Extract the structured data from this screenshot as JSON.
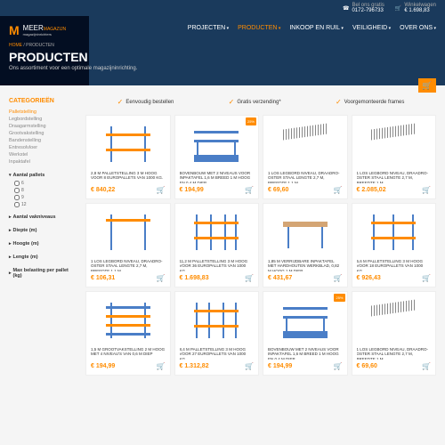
{
  "topbar": {
    "phone_label": "Bel ons gratis",
    "phone": "0172-796733",
    "cart_label": "Winkelwagen",
    "cart_total": "€ 1.698,83"
  },
  "logo": {
    "brand": "MEER",
    "sub": "MAGAZIJN",
    "tagline": "magazijninrichters"
  },
  "nav": [
    {
      "label": "PROJECTEN",
      "active": false
    },
    {
      "label": "PRODUCTEN",
      "active": true
    },
    {
      "label": "INKOOP EN RUIL",
      "active": false
    },
    {
      "label": "VEILIGHEID",
      "active": false
    },
    {
      "label": "OVER ONS",
      "active": false
    }
  ],
  "breadcrumb": {
    "home": "HOME",
    "current": "PRODUCTEN"
  },
  "page": {
    "title": "PRODUCTEN",
    "subtitle": "Ons assortiment voor een optimale magazijninrichting."
  },
  "sidebar": {
    "title": "CATEGORIEËN",
    "categories": [
      {
        "label": "Palletstelling",
        "active": true
      },
      {
        "label": "Legbordstelling",
        "active": false
      },
      {
        "label": "Draagarmstelling",
        "active": false
      },
      {
        "label": "Grootvakstelling",
        "active": false
      },
      {
        "label": "Bandenstelling",
        "active": false
      },
      {
        "label": "Entresolvloer",
        "active": false
      },
      {
        "label": "Werkstel",
        "active": false
      },
      {
        "label": "Inpaktafel",
        "active": false
      }
    ],
    "filters": [
      {
        "label": "Aantal pallets",
        "open": true,
        "options": [
          "6",
          "8",
          "9",
          "12"
        ]
      },
      {
        "label": "Aantal vakniveaus",
        "open": false
      },
      {
        "label": "Diepte (m)",
        "open": false
      },
      {
        "label": "Hoogte (m)",
        "open": false
      },
      {
        "label": "Lengte (m)",
        "open": false
      },
      {
        "label": "Max belasting per pallet (kg)",
        "open": false
      }
    ]
  },
  "benefits": [
    "Eenvoudig bestellen",
    "Gratis verzending*",
    "Voorgemonteerde frames"
  ],
  "products": [
    {
      "title": "2,8 M PALLETSTELLING 3 M HOOG VOOR 8 EUROPALLETS VAN 1000 KG.",
      "price": "€ 840,22"
    },
    {
      "title": "BOVENBOUW MET 2 NIVEAUS VOOR INPAKTAFEL 1,6 M BREED 1 M HOOG EN 0,4 M DIEP",
      "price": "€ 194,99",
      "badge": "25%"
    },
    {
      "title": "1 LOS LEGBORD NIVEAU, DRAADRO-OSTER STAAL LENGTE 2,7 M, BREEDTE 1,1 M",
      "price": "€ 69,60"
    },
    {
      "title": "1 LOS LEGBORD NIVEAU, DRAADRO-OSTER STAAL LENGTE 2,7 M, BREEDTE 1 M",
      "price": "€ 2.085,02"
    },
    {
      "title": "1 LOS LEGBORD NIVEAU, DRAADRO-OSTER STAAL LENGTE 2,7 M, BREEDTE 1,1 M",
      "price": "€ 106,31"
    },
    {
      "title": "11,2 M PALLETSTELLING 3 M HOOG VOOR 36 EUROPALLETS VAN 1000 KG.",
      "price": "€ 1.698,83"
    },
    {
      "title": "1,85 M VERRIJDBARE INPAKTAFEL MET HARDHOUTEN WERKBLAD, 0,82 M HOOG 1 M DIEP",
      "price": "€ 431,67"
    },
    {
      "title": "5,6 M PALLETSTELLING 3 M HOOG VOOR 18 EUROPALLETS VAN 1000 KG.",
      "price": "€ 926,43"
    },
    {
      "title": "1,5 M GROOTVAKSTELLING 2 M HOOG MET 4 NIVEAU'S VAN 0,6 M DIEP",
      "price": "€ 194,99"
    },
    {
      "title": "8,4 M PALLETSTELLING 3 M HOOG VOOR 27 EUROPALLETS VAN 1000 KG.",
      "price": "€ 1.312,82"
    },
    {
      "title": "BOVENBOUW MET 2 NIVEAUS VOOR INPAKTAFEL 1,6 M BREED 1 M HOOG EN 0,4 M DIEP",
      "price": "€ 194,99",
      "badge": "25%"
    },
    {
      "title": "1 LOS LEGBORD NIVEAU, DRAADRO-OSTER STAAL LENGTE 2,7 M, BREEDTE 1 M",
      "price": "€ 69,60"
    }
  ],
  "colors": {
    "accent": "#ff8c00",
    "dark": "#1a3a5c",
    "blue": "#4a7ec7"
  }
}
